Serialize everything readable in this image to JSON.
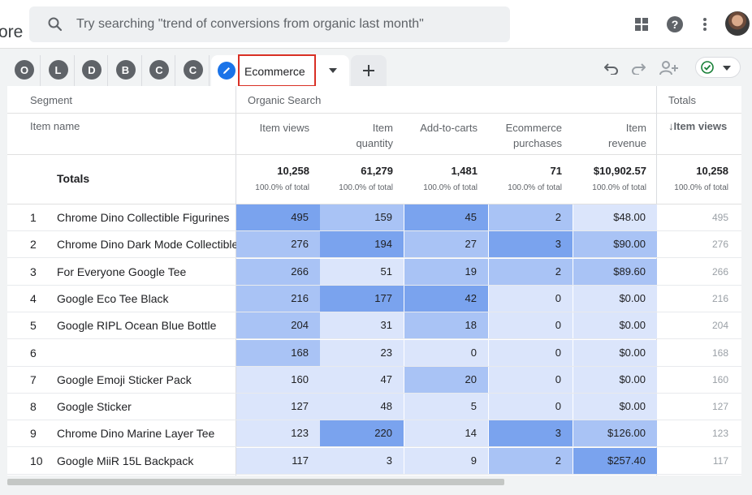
{
  "app": {
    "partial_title": "ore",
    "search_placeholder": "Try searching \"trend of conversions from organic last month\""
  },
  "segments": [
    "O",
    "L",
    "D",
    "B",
    "C",
    "C"
  ],
  "active_tab": {
    "label": "Ecommerce"
  },
  "table": {
    "segment_header": "Segment",
    "dimension_header": "Item name",
    "group_label": "Organic Search",
    "totals_group_label": "Totals",
    "metric_headers": [
      {
        "line1": "Item views",
        "line2": ""
      },
      {
        "line1": "Item",
        "line2": "quantity"
      },
      {
        "line1": "Add-to-carts",
        "line2": ""
      },
      {
        "line1": "Ecommerce",
        "line2": "purchases"
      },
      {
        "line1": "Item",
        "line2": "revenue"
      }
    ],
    "totals_metric_header": "↓Item views",
    "totals_label": "Totals",
    "totals": [
      {
        "value": "10,258",
        "pct": "100.0% of total"
      },
      {
        "value": "61,279",
        "pct": "100.0% of total"
      },
      {
        "value": "1,481",
        "pct": "100.0% of total"
      },
      {
        "value": "71",
        "pct": "100.0% of total"
      },
      {
        "value": "$10,902.57",
        "pct": "100.0% of total"
      }
    ],
    "totals_col_total": {
      "value": "10,258",
      "pct": "100.0% of total"
    },
    "rows": [
      {
        "idx": "1",
        "name": "Chrome Dino Collectible Figurines",
        "values": [
          "495",
          "159",
          "45",
          "2",
          "$48.00"
        ],
        "total": "495"
      },
      {
        "idx": "2",
        "name": "Chrome Dino Dark Mode Collectible",
        "values": [
          "276",
          "194",
          "27",
          "3",
          "$90.00"
        ],
        "total": "276"
      },
      {
        "idx": "3",
        "name": "For Everyone Google Tee",
        "values": [
          "266",
          "51",
          "19",
          "2",
          "$89.60"
        ],
        "total": "266"
      },
      {
        "idx": "4",
        "name": "Google Eco Tee Black",
        "values": [
          "216",
          "177",
          "42",
          "0",
          "$0.00"
        ],
        "total": "216"
      },
      {
        "idx": "5",
        "name": "Google RIPL Ocean Blue Bottle",
        "values": [
          "204",
          "31",
          "18",
          "0",
          "$0.00"
        ],
        "total": "204"
      },
      {
        "idx": "6",
        "name": "",
        "values": [
          "168",
          "23",
          "0",
          "0",
          "$0.00"
        ],
        "total": "168"
      },
      {
        "idx": "7",
        "name": "Google Emoji Sticker Pack",
        "values": [
          "160",
          "47",
          "20",
          "0",
          "$0.00"
        ],
        "total": "160"
      },
      {
        "idx": "8",
        "name": "Google Sticker",
        "values": [
          "127",
          "48",
          "5",
          "0",
          "$0.00"
        ],
        "total": "127"
      },
      {
        "idx": "9",
        "name": "Chrome Dino Marine Layer Tee",
        "values": [
          "123",
          "220",
          "14",
          "3",
          "$126.00"
        ],
        "total": "123"
      },
      {
        "idx": "10",
        "name": "Google MiiR 15L Backpack",
        "values": [
          "117",
          "3",
          "9",
          "2",
          "$257.40"
        ],
        "total": "117"
      }
    ],
    "heat_colors": {
      "low": "#dbe5fb",
      "mid": "#a9c3f5",
      "high": "#7aa3ee"
    }
  },
  "colors": {
    "accent": "#1a73e8",
    "highlight_border": "#d93025",
    "check_green": "#188038"
  }
}
